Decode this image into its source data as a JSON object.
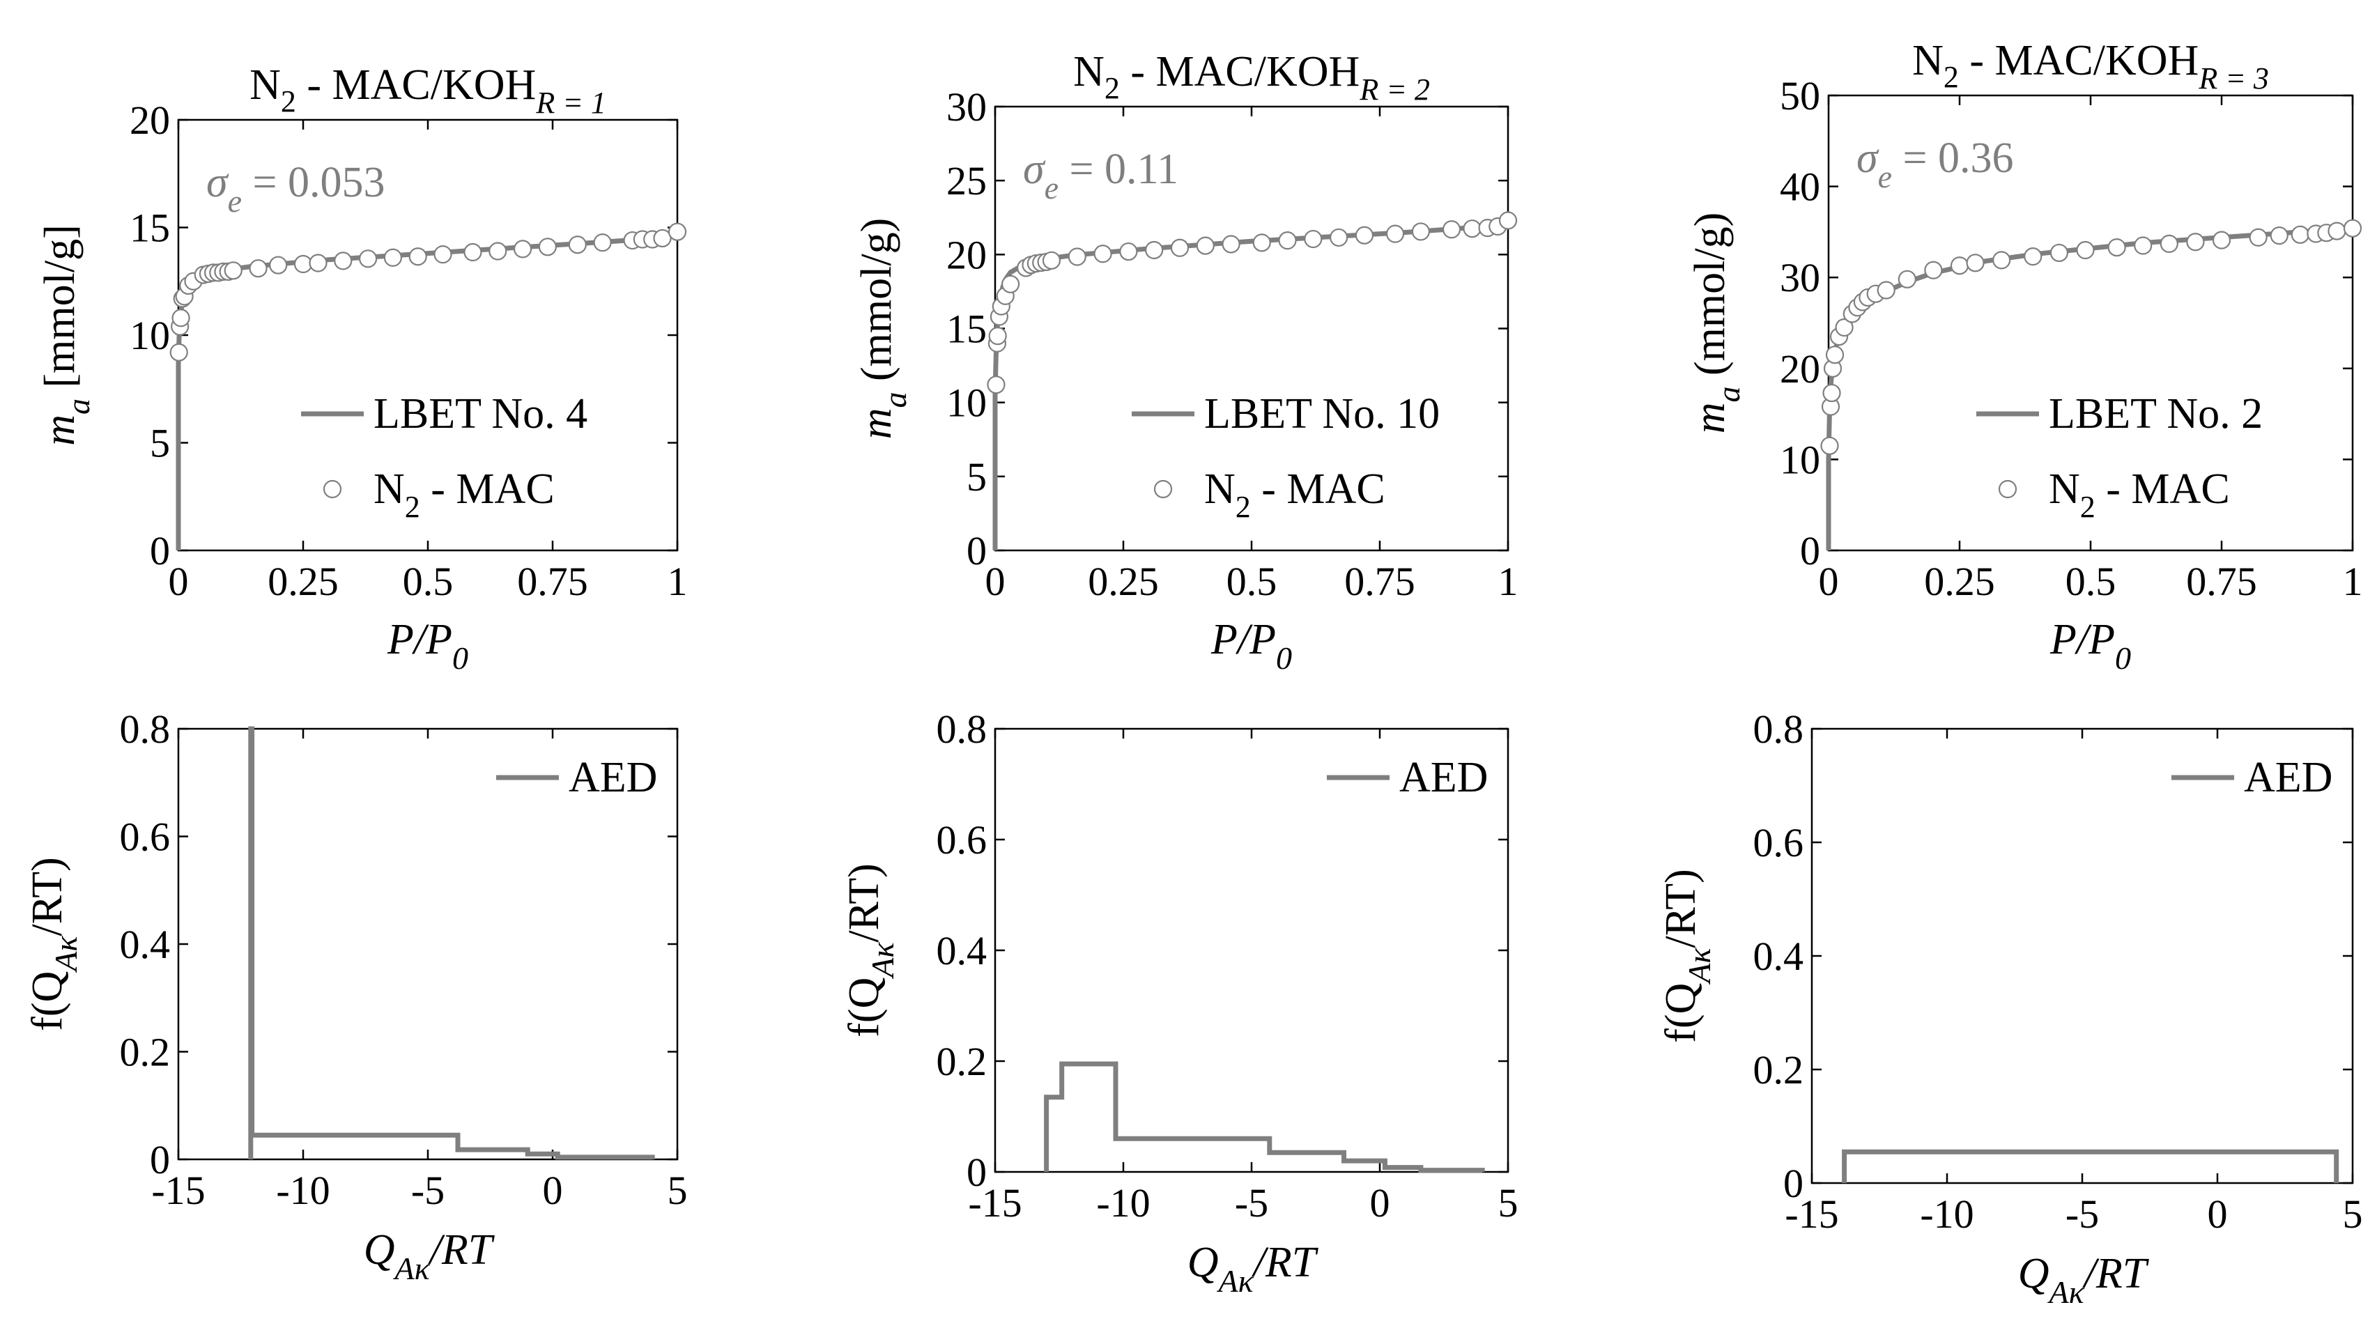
{
  "figure": {
    "colors": {
      "series": "#7f7f7f",
      "marker_edge": "#7f7f7f",
      "axis": "#000000"
    }
  },
  "chart_data": [
    {
      "id": "iso1",
      "type": "line+scatter",
      "title": {
        "main": "N",
        "main_sub": "2",
        "suffix": " - MAC/KOH",
        "suffix_sub": "R = 1"
      },
      "xlabel": {
        "parts": [
          "P",
          "/P"
        ],
        "sub": "0"
      },
      "ylabel": {
        "main": "m",
        "sub": "a",
        "rest": " [mmol/g]"
      },
      "annotation": {
        "sym": "σ",
        "sub": "e",
        "rest": " = 0.053"
      },
      "xlim": [
        0,
        1
      ],
      "ylim": [
        0,
        20
      ],
      "xticks": [
        0,
        0.25,
        0.5,
        0.75,
        1
      ],
      "xticklabels": [
        "0",
        "0.25",
        "0.5",
        "0.75",
        "1"
      ],
      "yticks": [
        0,
        5,
        10,
        15,
        20
      ],
      "yticklabels": [
        "0",
        "5",
        "10",
        "15",
        "20"
      ],
      "legend": {
        "location": "lower-right",
        "line": "LBET No. 4",
        "marker": {
          "main": "N",
          "sub": "2",
          "rest": " - MAC"
        }
      },
      "line": {
        "x": [
          0,
          0,
          0.001,
          0.002,
          0.003,
          0.005,
          0.008,
          0.012,
          0.02,
          0.03,
          0.05,
          0.07,
          0.1,
          0.15,
          0.2,
          0.3,
          0.4,
          0.5,
          0.6,
          0.7,
          0.8,
          0.9,
          0.95,
          1.0
        ],
        "y": [
          0,
          9.0,
          9.6,
          10.2,
          10.6,
          11.1,
          11.5,
          11.8,
          12.2,
          12.5,
          12.75,
          12.9,
          13.05,
          13.2,
          13.3,
          13.5,
          13.65,
          13.8,
          13.95,
          14.1,
          14.25,
          14.4,
          14.5,
          14.65
        ]
      },
      "scatter": {
        "x": [
          0.001,
          0.003,
          0.005,
          0.008,
          0.012,
          0.02,
          0.03,
          0.05,
          0.06,
          0.07,
          0.08,
          0.09,
          0.1,
          0.11,
          0.16,
          0.2,
          0.25,
          0.28,
          0.33,
          0.38,
          0.43,
          0.48,
          0.53,
          0.59,
          0.64,
          0.69,
          0.74,
          0.8,
          0.85,
          0.91,
          0.93,
          0.95,
          0.97,
          1.0
        ],
        "y": [
          9.2,
          10.4,
          10.8,
          11.7,
          11.8,
          12.3,
          12.5,
          12.8,
          12.85,
          12.9,
          12.9,
          12.95,
          12.95,
          13.0,
          13.1,
          13.25,
          13.3,
          13.35,
          13.45,
          13.55,
          13.6,
          13.65,
          13.75,
          13.85,
          13.9,
          14.0,
          14.1,
          14.2,
          14.3,
          14.4,
          14.45,
          14.45,
          14.5,
          14.8
        ]
      }
    },
    {
      "id": "iso2",
      "type": "line+scatter",
      "title": {
        "main": "N",
        "main_sub": "2",
        "suffix": " - MAC/KOH",
        "suffix_sub": "R = 2"
      },
      "xlabel": {
        "parts": [
          "P",
          "/P"
        ],
        "sub": "0"
      },
      "ylabel": {
        "main": "m",
        "sub": "a",
        "rest": " (mmol/g)"
      },
      "annotation": {
        "sym": "σ",
        "sub": "e",
        "rest": " = 0.11"
      },
      "xlim": [
        0,
        1
      ],
      "ylim": [
        0,
        30
      ],
      "xticks": [
        0,
        0.25,
        0.5,
        0.75,
        1
      ],
      "xticklabels": [
        "0",
        "0.25",
        "0.5",
        "0.75",
        "1"
      ],
      "yticks": [
        0,
        5,
        10,
        15,
        20,
        25,
        30
      ],
      "yticklabels": [
        "0",
        "5",
        "10",
        "15",
        "20",
        "25",
        "30"
      ],
      "legend": {
        "location": "lower-right",
        "line": "LBET No. 10",
        "marker": {
          "main": "N",
          "sub": "2",
          "rest": " - MAC"
        }
      },
      "line": {
        "x": [
          0,
          0,
          0.001,
          0.002,
          0.004,
          0.006,
          0.01,
          0.015,
          0.02,
          0.03,
          0.05,
          0.07,
          0.1,
          0.15,
          0.2,
          0.3,
          0.4,
          0.5,
          0.6,
          0.7,
          0.8,
          0.9,
          0.95,
          1.0
        ],
        "y": [
          0,
          10.5,
          12.0,
          13.5,
          15.0,
          16.0,
          17.0,
          17.8,
          18.3,
          18.8,
          19.2,
          19.45,
          19.7,
          19.95,
          20.1,
          20.4,
          20.65,
          20.9,
          21.1,
          21.3,
          21.5,
          21.75,
          21.9,
          22.1
        ]
      },
      "scatter": {
        "x": [
          0.002,
          0.004,
          0.005,
          0.008,
          0.012,
          0.02,
          0.03,
          0.06,
          0.07,
          0.08,
          0.09,
          0.1,
          0.11,
          0.16,
          0.21,
          0.26,
          0.31,
          0.36,
          0.41,
          0.46,
          0.52,
          0.57,
          0.62,
          0.67,
          0.72,
          0.78,
          0.83,
          0.89,
          0.93,
          0.96,
          0.98,
          1.0
        ],
        "y": [
          11.2,
          14.0,
          14.5,
          15.8,
          16.5,
          17.2,
          18.0,
          19.1,
          19.3,
          19.4,
          19.45,
          19.5,
          19.6,
          19.85,
          20.05,
          20.2,
          20.3,
          20.45,
          20.6,
          20.7,
          20.8,
          20.95,
          21.05,
          21.15,
          21.3,
          21.4,
          21.55,
          21.7,
          21.75,
          21.8,
          21.9,
          22.3
        ]
      }
    },
    {
      "id": "iso3",
      "type": "line+scatter",
      "title": {
        "main": "N",
        "main_sub": "2",
        "suffix": " - MAC/KOH",
        "suffix_sub": "R = 3"
      },
      "xlabel": {
        "parts": [
          "P",
          "/P"
        ],
        "sub": "0"
      },
      "ylabel": {
        "main": "m",
        "sub": "a",
        "rest": " (mmol/g)"
      },
      "annotation": {
        "sym": "σ",
        "sub": "e",
        "rest": " = 0.36"
      },
      "xlim": [
        0,
        1
      ],
      "ylim": [
        0,
        50
      ],
      "xticks": [
        0,
        0.25,
        0.5,
        0.75,
        1
      ],
      "xticklabels": [
        "0",
        "0.25",
        "0.5",
        "0.75",
        "1"
      ],
      "yticks": [
        0,
        10,
        20,
        30,
        40,
        50
      ],
      "yticklabels": [
        "0",
        "10",
        "20",
        "30",
        "40",
        "50"
      ],
      "legend": {
        "location": "lower-right",
        "line": "LBET No. 2",
        "marker": {
          "main": "N",
          "sub": "2",
          "rest": " - MAC"
        }
      },
      "line": {
        "x": [
          0,
          0,
          0.001,
          0.002,
          0.004,
          0.007,
          0.01,
          0.015,
          0.02,
          0.03,
          0.05,
          0.07,
          0.1,
          0.15,
          0.2,
          0.3,
          0.4,
          0.5,
          0.6,
          0.7,
          0.8,
          0.9,
          0.95,
          1.0
        ],
        "y": [
          0,
          10.0,
          13.0,
          15.5,
          18.0,
          20.0,
          21.2,
          22.5,
          23.3,
          24.5,
          26.0,
          27.0,
          28.2,
          29.5,
          30.5,
          31.8,
          32.6,
          33.2,
          33.8,
          34.2,
          34.6,
          35.0,
          35.2,
          35.5
        ]
      },
      "scatter": {
        "x": [
          0.002,
          0.004,
          0.006,
          0.008,
          0.012,
          0.02,
          0.03,
          0.045,
          0.055,
          0.065,
          0.075,
          0.09,
          0.11,
          0.15,
          0.2,
          0.25,
          0.28,
          0.33,
          0.39,
          0.44,
          0.49,
          0.55,
          0.6,
          0.65,
          0.7,
          0.75,
          0.82,
          0.86,
          0.9,
          0.93,
          0.95,
          0.97,
          1.0
        ],
        "y": [
          11.5,
          15.8,
          17.3,
          20.0,
          21.5,
          23.5,
          24.5,
          26.0,
          26.7,
          27.3,
          27.8,
          28.2,
          28.6,
          29.8,
          30.8,
          31.3,
          31.6,
          31.9,
          32.3,
          32.7,
          33.0,
          33.3,
          33.5,
          33.7,
          33.9,
          34.1,
          34.4,
          34.6,
          34.7,
          34.8,
          34.9,
          35.1,
          35.4
        ]
      }
    },
    {
      "id": "aed1",
      "type": "stairs",
      "xlabel": {
        "main": "Q",
        "sub": "Aκ",
        "rest": "/RT"
      },
      "ylabel": {
        "pre": "f(Q",
        "sub": "Aκ",
        "rest": "/RT)"
      },
      "xlim": [
        -15,
        5
      ],
      "ylim": [
        0,
        0.8
      ],
      "xticks": [
        -15,
        -10,
        -5,
        0,
        5
      ],
      "xticklabels": [
        "-15",
        "-10",
        "-5",
        "0",
        "5"
      ],
      "yticks": [
        0,
        0.2,
        0.4,
        0.6,
        0.8
      ],
      "yticklabels": [
        "0",
        "0.2",
        "0.4",
        "0.6",
        "0.8"
      ],
      "legend": {
        "location": "top-right",
        "line": "AED"
      },
      "steps": {
        "x": [
          -12.1,
          -12.1,
          -12.05,
          -12.05,
          -3.8,
          -3.8,
          -1.0,
          -1.0,
          0.2,
          0.2,
          4.0,
          4.0
        ],
        "y": [
          0,
          0.8,
          0.8,
          0.045,
          0.045,
          0.018,
          0.018,
          0.01,
          0.01,
          0.004,
          0.004,
          0
        ]
      }
    },
    {
      "id": "aed2",
      "type": "stairs",
      "xlabel": {
        "main": "Q",
        "sub": "Aκ",
        "rest": "/RT"
      },
      "ylabel": {
        "pre": "f(Q",
        "sub": "Aκ",
        "rest": "/RT)"
      },
      "xlim": [
        -15,
        5
      ],
      "ylim": [
        0,
        0.8
      ],
      "xticks": [
        -15,
        -10,
        -5,
        0,
        5
      ],
      "xticklabels": [
        "-15",
        "-10",
        "-5",
        "0",
        "5"
      ],
      "yticks": [
        0,
        0.2,
        0.4,
        0.6,
        0.8
      ],
      "yticklabels": [
        "0",
        "0.2",
        "0.4",
        "0.6",
        "0.8"
      ],
      "legend": {
        "location": "top-right",
        "line": "AED"
      },
      "steps": {
        "x": [
          -13.0,
          -13.0,
          -12.4,
          -12.4,
          -10.3,
          -10.3,
          -4.3,
          -4.3,
          -1.4,
          -1.4,
          0.2,
          0.2,
          1.6,
          1.6,
          4.0,
          4.0
        ],
        "y": [
          0,
          0.135,
          0.135,
          0.195,
          0.195,
          0.06,
          0.06,
          0.035,
          0.035,
          0.02,
          0.02,
          0.008,
          0.008,
          0.003,
          0.003,
          0
        ]
      }
    },
    {
      "id": "aed3",
      "type": "stairs",
      "xlabel": {
        "main": "Q",
        "sub": "Aκ",
        "rest": "/RT"
      },
      "ylabel": {
        "pre": "f(Q",
        "sub": "Aκ",
        "rest": "/RT)"
      },
      "xlim": [
        -15,
        5
      ],
      "ylim": [
        0,
        0.8
      ],
      "xticks": [
        -15,
        -10,
        -5,
        0,
        5
      ],
      "xticklabels": [
        "-15",
        "-10",
        "-5",
        "0",
        "5"
      ],
      "yticks": [
        0,
        0.2,
        0.4,
        0.6,
        0.8
      ],
      "yticklabels": [
        "0",
        "0.2",
        "0.4",
        "0.6",
        "0.8"
      ],
      "legend": {
        "location": "top-right",
        "line": "AED"
      },
      "steps": {
        "x": [
          -13.8,
          -13.8,
          4.4,
          4.4
        ],
        "y": [
          0,
          0.055,
          0.055,
          0
        ]
      }
    }
  ]
}
